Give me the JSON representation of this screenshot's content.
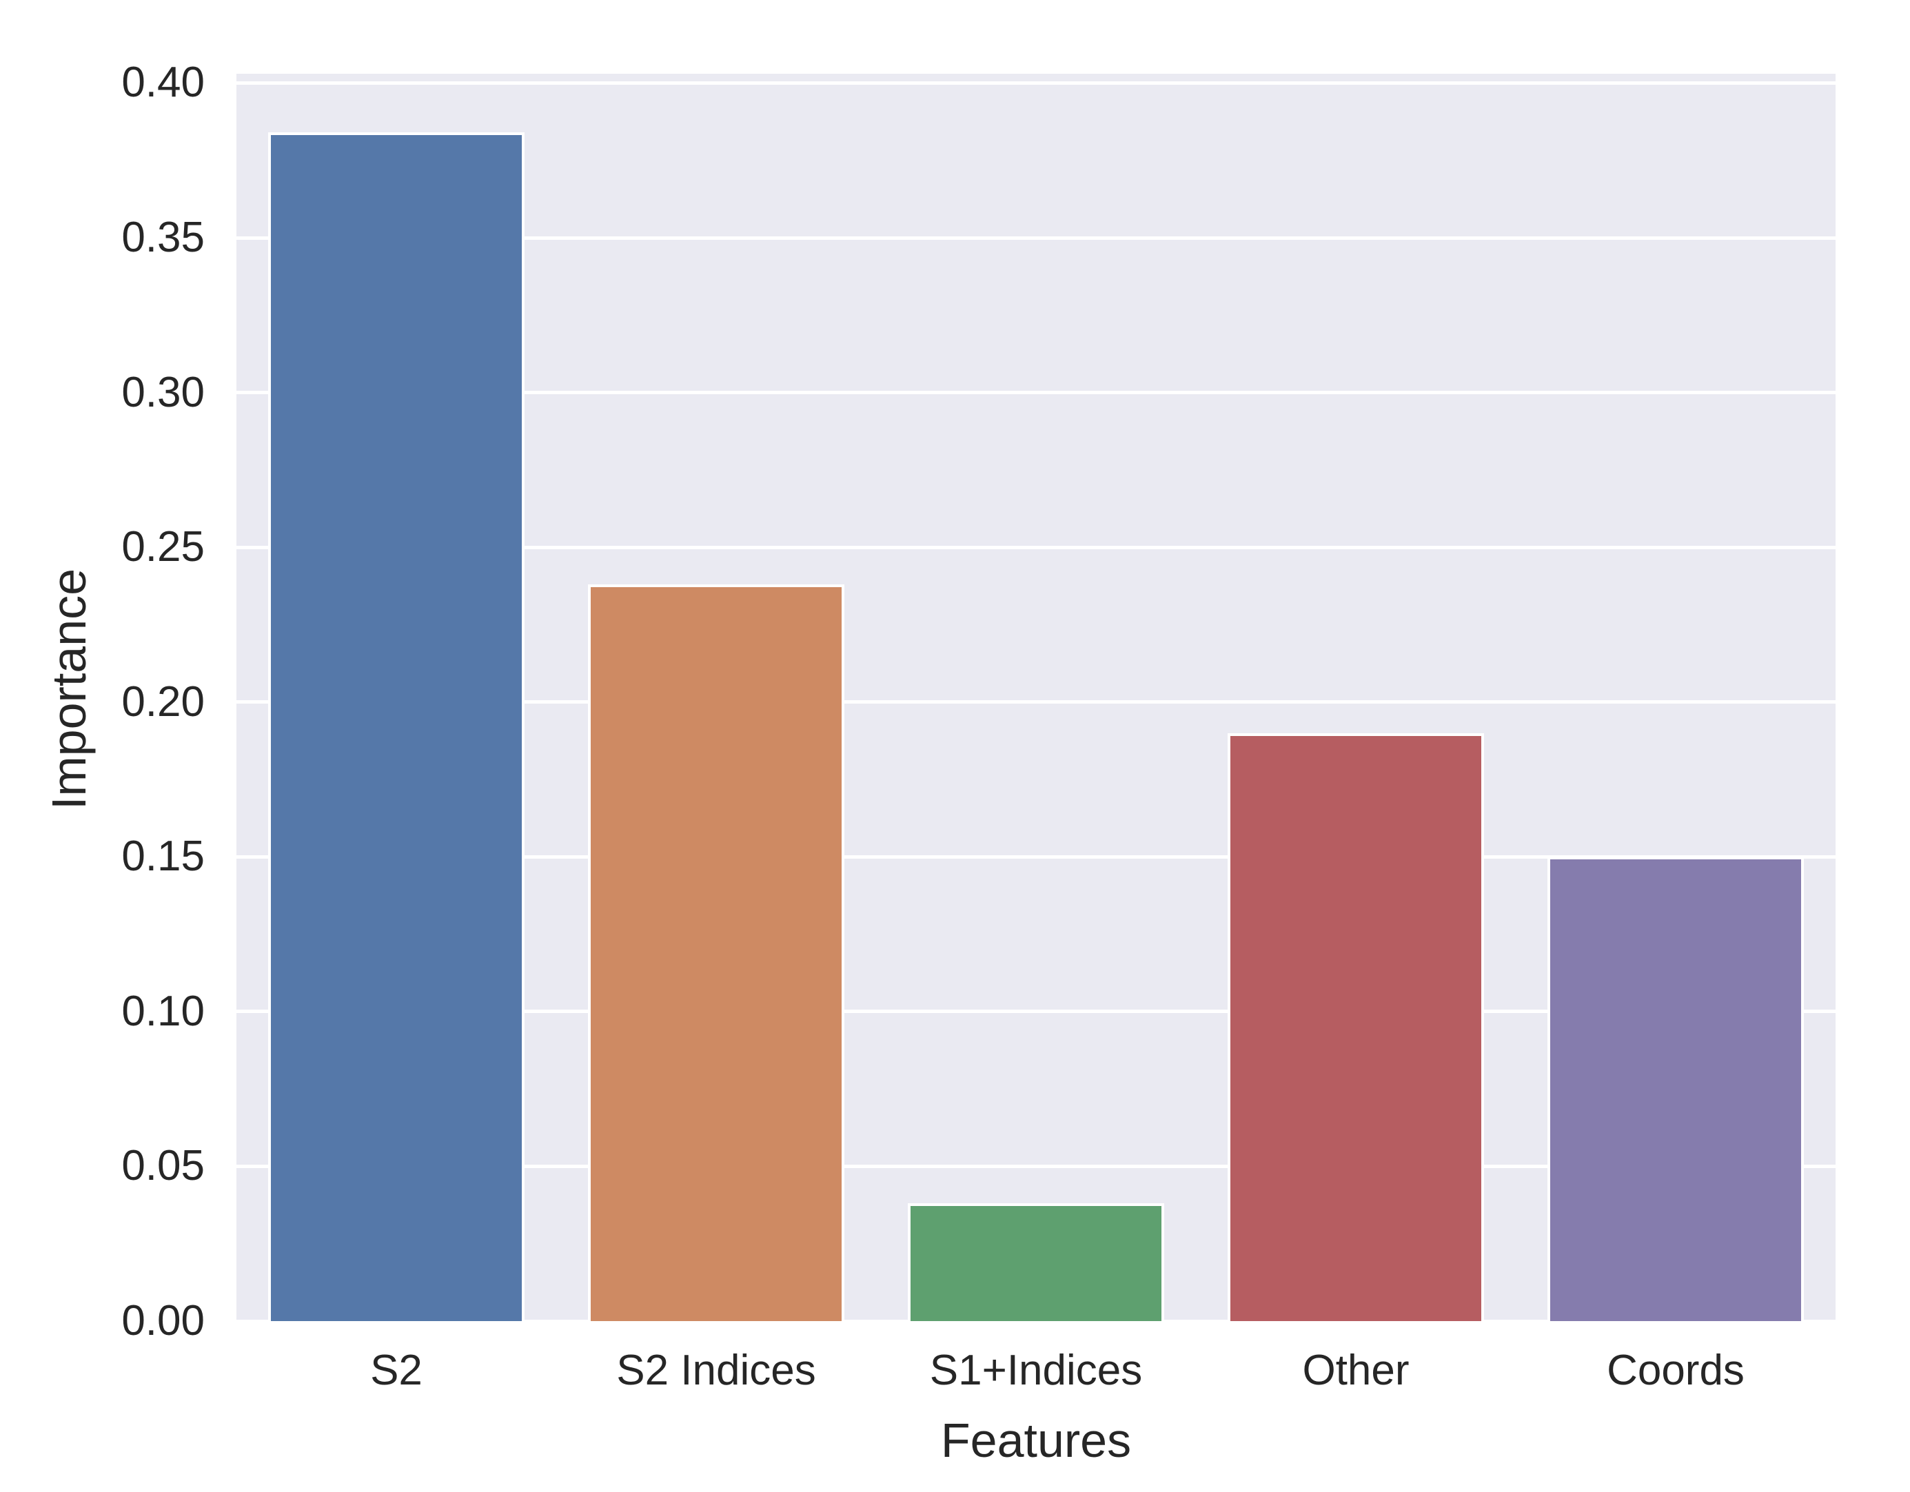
{
  "figure": {
    "background_color": "#ffffff",
    "plot_background_color": "#eaeaf2",
    "gridline_color": "#ffffff",
    "text_color": "#262626"
  },
  "chart_data": {
    "type": "bar",
    "title": "",
    "xlabel": "Features",
    "ylabel": "Importance",
    "categories": [
      "S2",
      "S2 Indices",
      "S1+Indices",
      "Other",
      "Coords"
    ],
    "values": [
      0.384,
      0.238,
      0.038,
      0.19,
      0.15
    ],
    "bar_colors": [
      "#5578a9",
      "#ce8a63",
      "#5ea06f",
      "#b65d61",
      "#857cad"
    ],
    "ylim": [
      0,
      0.403
    ],
    "yticks": [
      0.0,
      0.05,
      0.1,
      0.15,
      0.2,
      0.25,
      0.3,
      0.35,
      0.4
    ],
    "ytick_labels": [
      "0.00",
      "0.05",
      "0.10",
      "0.15",
      "0.20",
      "0.25",
      "0.30",
      "0.35",
      "0.40"
    ],
    "grid": true,
    "grid_axis": "y",
    "legend": false,
    "bar_width_fraction": 0.8
  }
}
